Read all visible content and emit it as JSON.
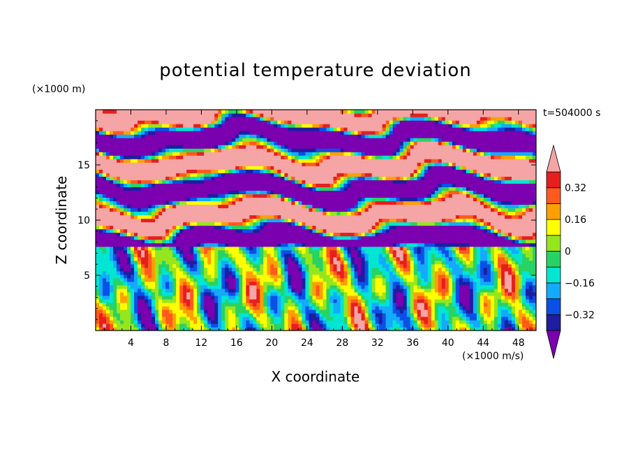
{
  "chart_data": {
    "type": "heatmap",
    "title": "potential temperature deviation",
    "xlabel": "X coordinate",
    "ylabel": "Z coordinate",
    "x_unit": "(×1000 m/s)",
    "y_unit": "(×1000 m)",
    "time_label": "t=504000 s",
    "xlim": [
      0,
      50
    ],
    "ylim": [
      0,
      20
    ],
    "x_ticks": [
      "4",
      "8",
      "12",
      "16",
      "20",
      "24",
      "28",
      "32",
      "36",
      "40",
      "44",
      "48"
    ],
    "y_ticks": [
      "5",
      "10",
      "15"
    ],
    "colorbar": {
      "levels": [
        -0.4,
        -0.32,
        -0.24,
        -0.16,
        -0.08,
        0,
        0.08,
        0.16,
        0.24,
        0.32,
        0.4
      ],
      "tick_labels": [
        "0.32",
        "0.16",
        "0",
        "−0.16",
        "−0.32"
      ],
      "colors": [
        "#7a00b0",
        "#1e1ea0",
        "#0a50e6",
        "#14aaff",
        "#00e6d2",
        "#28d264",
        "#96e61e",
        "#ffff00",
        "#ffa000",
        "#ff5a1e",
        "#e61e1e",
        "#f5a5a5"
      ],
      "extend": "both"
    }
  }
}
